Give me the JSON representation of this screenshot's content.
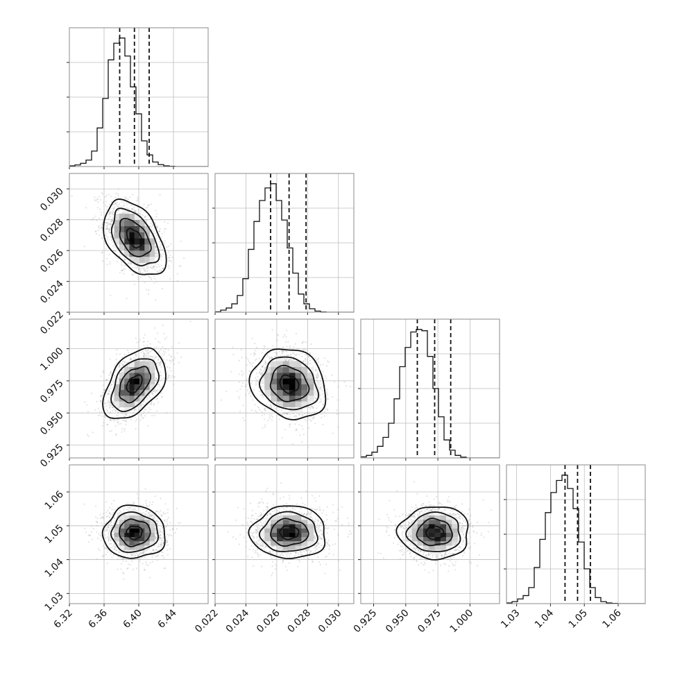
{
  "chart_data": {
    "type": "corner",
    "n_params": 4,
    "params": [
      {
        "index": 0,
        "median": 6.395,
        "q16": 6.378,
        "q84": 6.412,
        "range": [
          6.32,
          6.48
        ],
        "ticks": [
          6.32,
          6.36,
          6.4,
          6.44
        ],
        "tick_labels": [
          "6.32",
          "6.36",
          "6.40",
          "6.44"
        ]
      },
      {
        "index": 1,
        "median": 0.0268,
        "q16": 0.0256,
        "q84": 0.0279,
        "range": [
          0.022,
          0.031
        ],
        "ticks": [
          0.022,
          0.024,
          0.026,
          0.028,
          0.03
        ],
        "tick_labels": [
          "0.022",
          "0.024",
          "0.026",
          "0.028",
          "0.030"
        ]
      },
      {
        "index": 2,
        "median": 0.9725,
        "q16": 0.959,
        "q84": 0.985,
        "range": [
          0.915,
          1.023
        ],
        "ticks": [
          0.925,
          0.95,
          0.975,
          1.0
        ],
        "tick_labels": [
          "0.925",
          "0.950",
          "0.975",
          "1.000"
        ]
      },
      {
        "index": 3,
        "median": 1.048,
        "q16": 1.0443,
        "q84": 1.0518,
        "range": [
          1.027,
          1.068
        ],
        "ticks": [
          1.03,
          1.04,
          1.05,
          1.06
        ],
        "tick_labels": [
          "1.03",
          "1.04",
          "1.05",
          "1.06"
        ]
      }
    ],
    "histograms": [
      {
        "param": 0,
        "bin_start": 6.32,
        "bin_width": 0.0064,
        "counts": [
          0.5,
          1.2,
          2.5,
          5,
          12,
          30,
          53,
          83,
          96,
          100,
          86,
          62,
          41,
          20,
          9,
          3.5,
          1.5,
          0.5,
          0.2,
          0,
          0,
          0,
          0,
          0,
          0
        ]
      },
      {
        "param": 1,
        "bin_start": 0.022,
        "bin_width": 0.00036,
        "counts": [
          0.3,
          1.5,
          3,
          6,
          12,
          24,
          45,
          65,
          80,
          89,
          92,
          80,
          66,
          46,
          28,
          13,
          6,
          2.5,
          0.8,
          0.2,
          0,
          0,
          0,
          0,
          0
        ]
      },
      {
        "param": 2,
        "bin_start": 0.915,
        "bin_width": 0.00432,
        "counts": [
          0.8,
          2,
          4.5,
          9,
          16,
          27,
          46,
          71,
          86,
          98,
          100,
          99,
          79,
          54,
          32,
          14,
          6,
          2,
          0.6,
          0,
          0,
          0,
          0,
          0,
          0
        ]
      },
      {
        "param": 3,
        "bin_start": 1.027,
        "bin_width": 0.00164,
        "counts": [
          0.5,
          1.5,
          3.5,
          6,
          12,
          27,
          48,
          68,
          83,
          92,
          96,
          86,
          71,
          46,
          26,
          12,
          4.5,
          1.5,
          0.5,
          0.2,
          0,
          0,
          0,
          0,
          0
        ]
      }
    ],
    "pairs": [
      {
        "x": 0,
        "y": 1,
        "correlation": -0.45
      },
      {
        "x": 0,
        "y": 2,
        "correlation": 0.45
      },
      {
        "x": 1,
        "y": 2,
        "correlation": -0.15
      },
      {
        "x": 0,
        "y": 3,
        "correlation": 0.0
      },
      {
        "x": 1,
        "y": 3,
        "correlation": 0.0
      },
      {
        "x": 2,
        "y": 3,
        "correlation": 0.0
      }
    ],
    "sigma": [
      0.017,
      0.00116,
      0.013,
      0.0037
    ],
    "contour_levels_sigma": [
      0.5,
      1.0,
      1.5,
      2.0
    ],
    "grid": true,
    "colors": {
      "line": "#111111",
      "scatter": "#9a9a9a",
      "density_low": "#f2f2f2",
      "density_high": "#000000",
      "grid": "#bdbdbd",
      "frame": "#888888"
    }
  }
}
